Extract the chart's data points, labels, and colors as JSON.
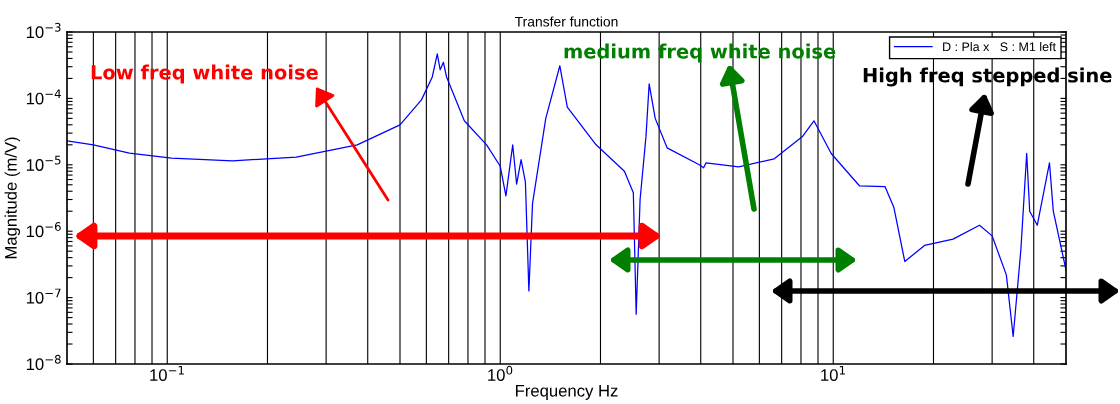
{
  "chart_data": {
    "type": "line",
    "title": "Transfer function",
    "xlabel": "Frequency Hz",
    "ylabel": "Magnitude (m/V)",
    "log": "xy",
    "grid": "x",
    "legend": "top right",
    "marker": "none",
    "line_style": "solid",
    "xlim": [
      0.05,
      50
    ],
    "ylim": [
      1e-08,
      0.001
    ],
    "xticks": [
      {
        "value": 0.06,
        "label": null
      },
      {
        "value": 0.07,
        "label": null
      },
      {
        "value": 0.08,
        "label": null
      },
      {
        "value": 0.09,
        "label": null
      },
      {
        "value": 0.1,
        "label": "10$^{−1}$"
      },
      {
        "value": 0.2,
        "label": null
      },
      {
        "value": 0.3,
        "label": null
      },
      {
        "value": 0.4,
        "label": null
      },
      {
        "value": 0.5,
        "label": null
      },
      {
        "value": 0.6,
        "label": null
      },
      {
        "value": 0.7,
        "label": null
      },
      {
        "value": 0.8,
        "label": null
      },
      {
        "value": 0.9,
        "label": null
      },
      {
        "value": 1,
        "label": "10$^{0}$"
      },
      {
        "value": 2,
        "label": null
      },
      {
        "value": 3,
        "label": null
      },
      {
        "value": 4,
        "label": null
      },
      {
        "value": 5,
        "label": null
      },
      {
        "value": 6,
        "label": null
      },
      {
        "value": 7,
        "label": null
      },
      {
        "value": 8,
        "label": null
      },
      {
        "value": 9,
        "label": null
      },
      {
        "value": 10,
        "label": "10$^{1}$"
      },
      {
        "value": 20,
        "label": null
      },
      {
        "value": 30,
        "label": null
      },
      {
        "value": 40,
        "label": null
      }
    ],
    "yticks": [
      {
        "value": 1e-08,
        "label": "10$^{−8}$"
      },
      {
        "value": 2e-08,
        "label": null
      },
      {
        "value": 3e-08,
        "label": null
      },
      {
        "value": 4e-08,
        "label": null
      },
      {
        "value": 5e-08,
        "label": null
      },
      {
        "value": 6e-08,
        "label": null
      },
      {
        "value": 7e-08,
        "label": null
      },
      {
        "value": 8e-08,
        "label": null
      },
      {
        "value": 9e-08,
        "label": null
      },
      {
        "value": 1e-07,
        "label": "10$^{−7}$"
      },
      {
        "value": 2e-07,
        "label": null
      },
      {
        "value": 3e-07,
        "label": null
      },
      {
        "value": 4e-07,
        "label": null
      },
      {
        "value": 5e-07,
        "label": null
      },
      {
        "value": 6e-07,
        "label": null
      },
      {
        "value": 7e-07,
        "label": null
      },
      {
        "value": 8e-07,
        "label": null
      },
      {
        "value": 9e-07,
        "label": null
      },
      {
        "value": 1e-06,
        "label": "10$^{−6}$"
      },
      {
        "value": 2e-06,
        "label": null
      },
      {
        "value": 3e-06,
        "label": null
      },
      {
        "value": 4e-06,
        "label": null
      },
      {
        "value": 5e-06,
        "label": null
      },
      {
        "value": 6e-06,
        "label": null
      },
      {
        "value": 7e-06,
        "label": null
      },
      {
        "value": 8e-06,
        "label": null
      },
      {
        "value": 9e-06,
        "label": null
      },
      {
        "value": 1e-05,
        "label": "10$^{−5}$"
      },
      {
        "value": 2e-05,
        "label": null
      },
      {
        "value": 3e-05,
        "label": null
      },
      {
        "value": 4e-05,
        "label": null
      },
      {
        "value": 5e-05,
        "label": null
      },
      {
        "value": 6e-05,
        "label": null
      },
      {
        "value": 7e-05,
        "label": null
      },
      {
        "value": 8e-05,
        "label": null
      },
      {
        "value": 9e-05,
        "label": null
      },
      {
        "value": 0.0001,
        "label": "10$^{−4}$"
      },
      {
        "value": 0.0002,
        "label": null
      },
      {
        "value": 0.0003,
        "label": null
      },
      {
        "value": 0.0004,
        "label": null
      },
      {
        "value": 0.0005,
        "label": null
      },
      {
        "value": 0.0006,
        "label": null
      },
      {
        "value": 0.0007,
        "label": null
      },
      {
        "value": 0.0008,
        "label": null
      },
      {
        "value": 0.0009,
        "label": null
      },
      {
        "value": 0.001,
        "label": "10$^{−3}$"
      }
    ],
    "annotations": [
      "Low freq white noise",
      "medium freq white noise",
      "High freq stepped sine"
    ],
    "series": [
      {
        "name": "D : Pla x   S : M1 left",
        "color": "#0000ff",
        "x": [
          0.05,
          0.06,
          0.077,
          0.103,
          0.157,
          0.244,
          0.372,
          0.5,
          0.58,
          0.625,
          0.647,
          0.66,
          0.675,
          0.69,
          0.78,
          0.91,
          1.0,
          1.04,
          1.09,
          1.12,
          1.155,
          1.19,
          1.219,
          1.25,
          1.37,
          1.51,
          1.59,
          1.94,
          2.36,
          2.51,
          2.56,
          2.63,
          2.74,
          2.8,
          2.92,
          3.17,
          3.96,
          4.08,
          4.15,
          5.2,
          6.65,
          8.1,
          8.75,
          9.86,
          12.0,
          14.3,
          15.2,
          16.4,
          18.8,
          22.9,
          27.5,
          30,
          33.1,
          34.7,
          36.6,
          38.1,
          38.9,
          41,
          44.6,
          45.8,
          50
        ],
        "values": [
          2.3e-05,
          2e-05,
          1.5e-05,
          1.26e-05,
          1.15e-05,
          1.3e-05,
          2e-05,
          4e-05,
          9.5e-05,
          0.00021,
          0.00047,
          0.00027,
          0.00035,
          0.00021,
          4.6e-05,
          2e-05,
          9.5e-06,
          3.4e-06,
          2e-05,
          5.1e-06,
          1.2e-05,
          5.5e-06,
          1.26e-07,
          2.6e-06,
          5e-05,
          0.00031,
          7.4e-05,
          2e-05,
          8e-06,
          3.8e-06,
          5.6e-08,
          3e-06,
          2.7e-05,
          0.000165,
          5e-05,
          1.8e-05,
          1e-05,
          9e-06,
          1.07e-05,
          9.3e-06,
          1.23e-05,
          2.7e-05,
          4.6e-05,
          1.48e-05,
          4.8e-06,
          4.7e-06,
          2.3e-06,
          3.5e-07,
          6.1e-07,
          7.6e-07,
          1.23e-06,
          8.5e-07,
          2.2e-07,
          2.6e-08,
          5.3e-07,
          1.48e-05,
          2e-06,
          1.23e-06,
          1.07e-05,
          2e-06,
          2.6e-07
        ]
      }
    ]
  }
}
